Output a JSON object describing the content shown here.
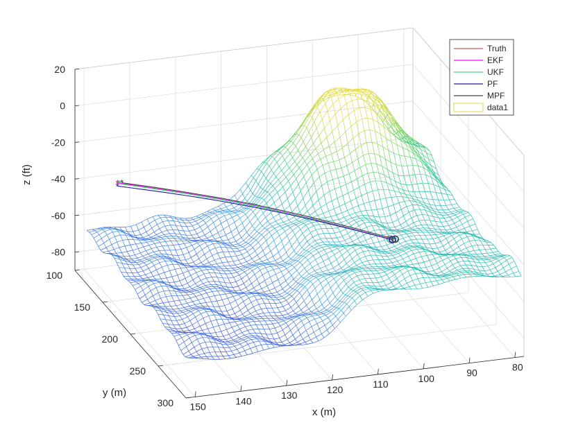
{
  "chart_data": {
    "type": "surface-3d",
    "xlabel": "x (m)",
    "ylabel": "y (m)",
    "zlabel": "z (ft)",
    "xlim": [
      78,
      152
    ],
    "ylim": [
      100,
      300
    ],
    "zlim": [
      -90,
      20
    ],
    "x_ticks": [
      "150",
      "140",
      "130",
      "120",
      "110",
      "100",
      "90",
      "80"
    ],
    "y_ticks": [
      "100",
      "150",
      "200",
      "250",
      "300"
    ],
    "z_ticks": [
      "20",
      "0",
      "-20",
      "-40",
      "-60",
      "-80"
    ],
    "grid": true,
    "legend_position": "top-right",
    "colormap": [
      "#3f51e0",
      "#3ea0e6",
      "#27c3a8",
      "#5ad46d",
      "#bfd94a",
      "#f5dd3a"
    ],
    "surface": {
      "name": "data1",
      "description_levels": {
        "min": -75,
        "max": 0
      }
    },
    "series": [
      {
        "name": "Truth",
        "color": "#e0524a",
        "start": {
          "x": 150,
          "y": 160,
          "z": -22
        },
        "end": {
          "x": 100,
          "y": 240,
          "z": -40
        }
      },
      {
        "name": "EKF",
        "color": "#ff00ff",
        "start": {
          "x": 150,
          "y": 161,
          "z": -21.5
        },
        "end": {
          "x": 100,
          "y": 240,
          "z": -40
        }
      },
      {
        "name": "UKF",
        "color": "#4bd37a",
        "start": {
          "x": 149.5,
          "y": 160,
          "z": -22.5
        },
        "end": {
          "x": 100,
          "y": 240.5,
          "z": -40
        }
      },
      {
        "name": "PF",
        "color": "#1a1aa8",
        "start": {
          "x": 150,
          "y": 160,
          "z": -23.5
        },
        "end": {
          "x": 99.5,
          "y": 240,
          "z": -40.5
        }
      },
      {
        "name": "MPF",
        "color": "#404040",
        "start": {
          "x": 149,
          "y": 160,
          "z": -22
        },
        "end": {
          "x": 99,
          "y": 241,
          "z": -40
        }
      }
    ]
  }
}
